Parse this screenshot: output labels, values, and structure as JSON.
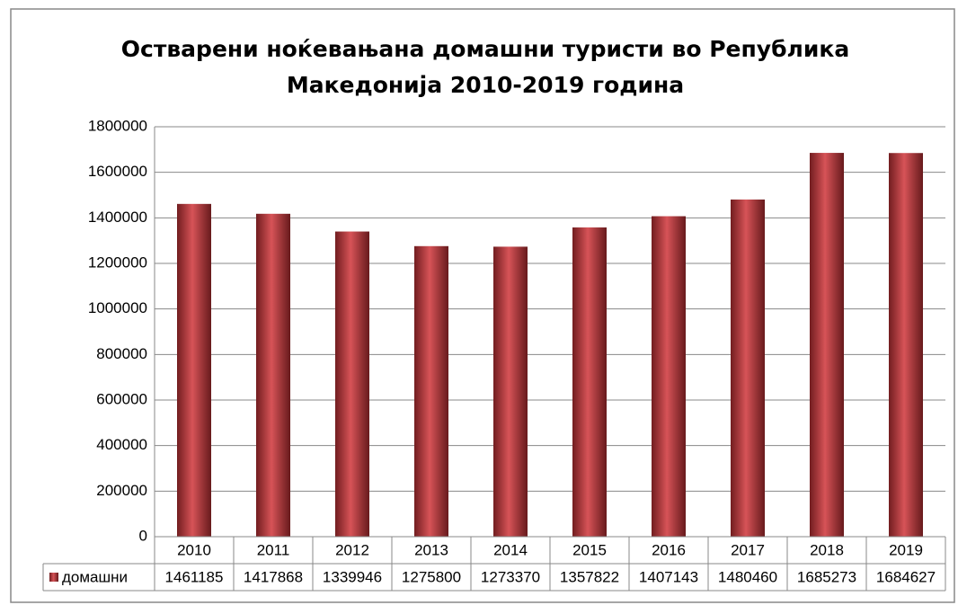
{
  "chart_data": {
    "type": "bar",
    "title": [
      "Остварени ноќевањана домашни туристи во Република",
      "Македонија 2010-2019 година"
    ],
    "categories": [
      "2010",
      "2011",
      "2012",
      "2013",
      "2014",
      "2015",
      "2016",
      "2017",
      "2018",
      "2019"
    ],
    "series": [
      {
        "name": "домашни",
        "color": "#d0353a",
        "values": [
          1461185,
          1417868,
          1339946,
          1275800,
          1273370,
          1357822,
          1407143,
          1480460,
          1685273,
          1684627
        ]
      }
    ],
    "ylim": [
      0,
      1800000
    ],
    "yticks": [
      0,
      200000,
      400000,
      600000,
      800000,
      1000000,
      1200000,
      1400000,
      1600000,
      1800000
    ],
    "grid": true,
    "data_table": true
  }
}
